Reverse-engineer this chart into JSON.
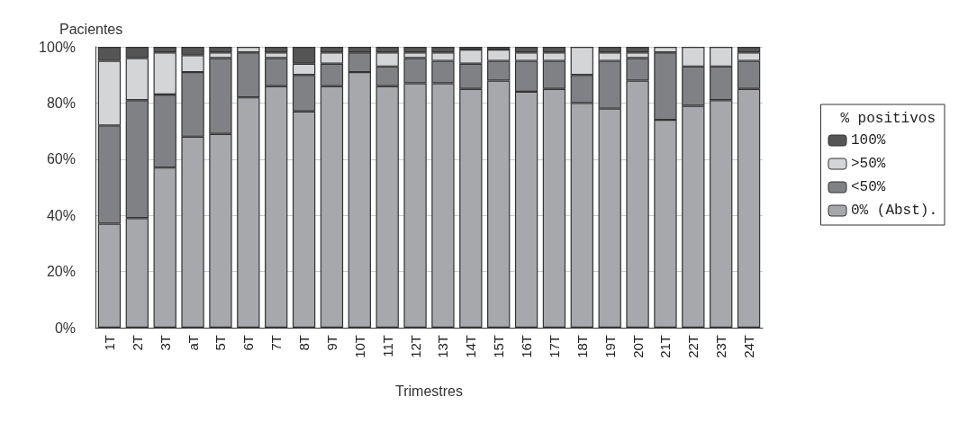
{
  "chart_data": {
    "type": "bar",
    "stacked": true,
    "ylabel": "Pacientes",
    "xlabel": "Trimestres",
    "legend_title": "% positivos",
    "legend": "right",
    "grid": "y",
    "categories": [
      "1T",
      "2T",
      "3T",
      "aT",
      "5T",
      "6T",
      "7T",
      "8T",
      "9T",
      "10T",
      "11T",
      "12T",
      "13T",
      "14T",
      "15T",
      "16T",
      "17T",
      "18T",
      "19T",
      "20T",
      "21T",
      "22T",
      "23T",
      "24T"
    ],
    "ylim": [
      0,
      100
    ],
    "yticks": [
      {
        "value": 0,
        "label": "0%"
      },
      {
        "value": 20,
        "label": "20%"
      },
      {
        "value": 40,
        "label": "40%"
      },
      {
        "value": 60,
        "label": "60%"
      },
      {
        "value": 80,
        "label": "80%"
      },
      {
        "value": 100,
        "label": "100%"
      }
    ],
    "series": [
      {
        "name": "0% (Abst).",
        "color": "#a7a8ac",
        "values": [
          37,
          39,
          57,
          68,
          69,
          82,
          86,
          77,
          86,
          91,
          86,
          87,
          87,
          85,
          88,
          84,
          85,
          80,
          78,
          88,
          74,
          79,
          81,
          85
        ]
      },
      {
        "name": "<50%",
        "color": "#808185",
        "values": [
          35,
          42,
          26,
          23,
          27,
          16,
          10,
          13,
          8,
          7,
          7,
          9,
          8,
          9,
          7,
          11,
          10,
          10,
          17,
          8,
          24,
          14,
          12,
          10
        ]
      },
      {
        "name": ">50%",
        "color": "#d4d5d7",
        "values": [
          23,
          15,
          15,
          6,
          2,
          2,
          2,
          4,
          4,
          0,
          5,
          2,
          3,
          5,
          4,
          3,
          3,
          10,
          3,
          2,
          2,
          7,
          7,
          3
        ]
      },
      {
        "name": "100%",
        "color": "#555555",
        "values": [
          5,
          4,
          2,
          3,
          2,
          0,
          2,
          6,
          2,
          2,
          2,
          2,
          2,
          1,
          1,
          2,
          2,
          0,
          2,
          2,
          0,
          0,
          0,
          2
        ]
      }
    ]
  }
}
